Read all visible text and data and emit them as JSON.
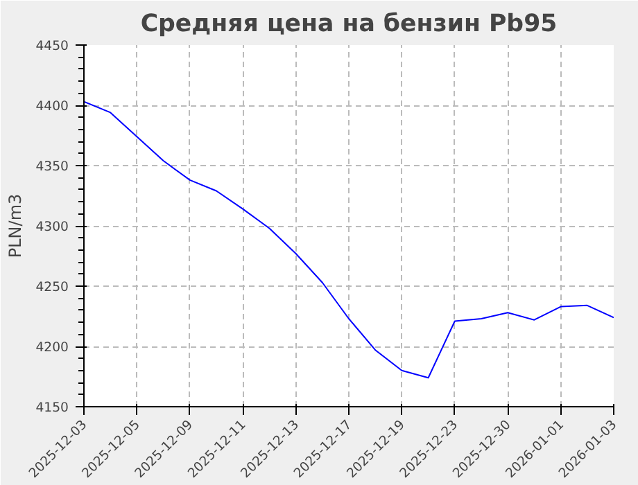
{
  "chart_data": {
    "type": "line",
    "title": "Средняя цена на бензин Pb95",
    "ylabel": "PLN/m3",
    "categories": [
      "2025-12-03",
      null,
      "2025-12-05",
      null,
      "2025-12-09",
      null,
      "2025-12-11",
      null,
      "2025-12-13",
      null,
      "2025-12-17",
      null,
      "2025-12-19",
      null,
      "2025-12-23",
      null,
      "2025-12-30",
      null,
      "2026-01-01",
      null,
      "2026-01-03"
    ],
    "series": [
      {
        "color": "#0000ff",
        "values": [
          4403,
          4394,
          4374,
          4354,
          4338,
          4329,
          4314,
          4298,
          4277,
          4253,
          4223,
          4197,
          4180,
          4174,
          4221,
          4223,
          4228,
          4222,
          4233,
          4234,
          4224
        ]
      }
    ],
    "ylim": [
      4150,
      4450
    ],
    "yticks": [
      4150,
      4200,
      4250,
      4300,
      4350,
      4400,
      4450
    ],
    "grid": true,
    "marker": "none",
    "line_style": "solid"
  }
}
